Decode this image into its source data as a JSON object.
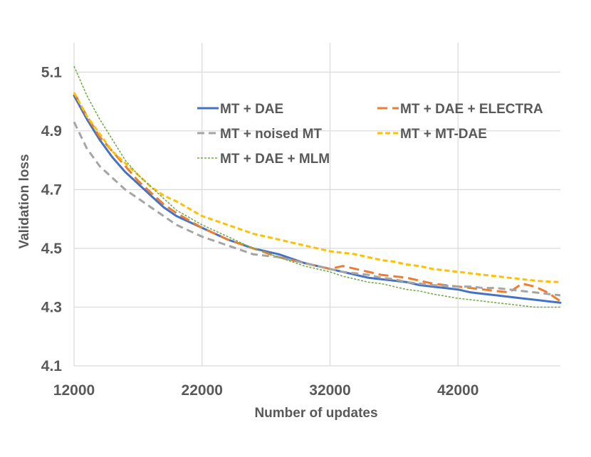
{
  "chart_data": {
    "type": "line",
    "title": "",
    "xlabel": "Number of updates",
    "ylabel": "Validation loss",
    "xlim": [
      12000,
      50000
    ],
    "ylim": [
      4.1,
      5.2
    ],
    "x_ticks": [
      12000,
      22000,
      32000,
      42000
    ],
    "x_tick_labels": [
      "12000",
      "22000",
      "32000",
      "42000"
    ],
    "y_ticks": [
      4.1,
      4.3,
      4.5,
      4.7,
      4.9,
      5.1
    ],
    "y_tick_labels": [
      "4.1",
      "4.3",
      "4.5",
      "4.7",
      "4.9",
      "5.1"
    ],
    "grid": "horizontal",
    "legend_position": "top-right",
    "x": [
      12000,
      13000,
      14000,
      15000,
      16000,
      17000,
      18000,
      19000,
      20000,
      22000,
      24000,
      26000,
      28000,
      30000,
      32000,
      33000,
      34000,
      35000,
      36000,
      37000,
      38000,
      39000,
      40000,
      42000,
      43000,
      44000,
      45000,
      46000,
      47000,
      48000,
      49000,
      50000
    ],
    "series": [
      {
        "name": "MT + DAE",
        "color": "#4472C4",
        "dash": "solid",
        "width": 3,
        "values": [
          5.02,
          4.94,
          4.87,
          4.81,
          4.76,
          4.72,
          4.68,
          4.64,
          4.61,
          4.57,
          4.53,
          4.5,
          4.48,
          4.45,
          4.43,
          4.42,
          4.41,
          4.4,
          4.395,
          4.39,
          4.385,
          4.375,
          4.37,
          4.36,
          4.35,
          4.345,
          4.34,
          4.335,
          4.33,
          4.325,
          4.32,
          4.315
        ]
      },
      {
        "name": "MT + DAE + ELECTRA",
        "color": "#ED7D31",
        "dash": "longdash",
        "width": 3,
        "values": [
          5.03,
          4.95,
          4.88,
          4.83,
          4.78,
          4.73,
          4.69,
          4.65,
          4.62,
          4.57,
          4.53,
          4.5,
          4.47,
          4.45,
          4.43,
          4.44,
          4.43,
          4.42,
          4.41,
          4.405,
          4.4,
          4.39,
          4.38,
          4.37,
          4.365,
          4.36,
          4.355,
          4.35,
          4.38,
          4.37,
          4.35,
          4.32
        ]
      },
      {
        "name": "MT + noised MT",
        "color": "#A5A5A5",
        "dash": "dash",
        "width": 3,
        "values": [
          4.93,
          4.84,
          4.78,
          4.74,
          4.7,
          4.67,
          4.64,
          4.61,
          4.58,
          4.54,
          4.51,
          4.48,
          4.47,
          4.45,
          4.43,
          4.42,
          4.415,
          4.41,
          4.4,
          4.395,
          4.385,
          4.38,
          4.375,
          4.37,
          4.37,
          4.365,
          4.365,
          4.36,
          4.355,
          4.35,
          4.345,
          4.34
        ]
      },
      {
        "name": "MT + MT-DAE",
        "color": "#FFC000",
        "dash": "shortdash",
        "width": 3,
        "values": [
          5.03,
          4.95,
          4.89,
          4.83,
          4.79,
          4.75,
          4.71,
          4.68,
          4.66,
          4.61,
          4.58,
          4.55,
          4.53,
          4.51,
          4.49,
          4.485,
          4.48,
          4.47,
          4.46,
          4.455,
          4.445,
          4.44,
          4.43,
          4.42,
          4.415,
          4.41,
          4.405,
          4.4,
          4.395,
          4.39,
          4.387,
          4.385
        ]
      },
      {
        "name": "MT + DAE + MLM",
        "color": "#70AD47",
        "dash": "dot",
        "width": 1.6,
        "values": [
          5.12,
          5.02,
          4.94,
          4.87,
          4.8,
          4.75,
          4.71,
          4.67,
          4.63,
          4.58,
          4.54,
          4.5,
          4.47,
          4.44,
          4.42,
          4.405,
          4.395,
          4.385,
          4.38,
          4.37,
          4.36,
          4.355,
          4.345,
          4.33,
          4.325,
          4.32,
          4.315,
          4.31,
          4.305,
          4.3,
          4.3,
          4.3
        ]
      }
    ]
  }
}
